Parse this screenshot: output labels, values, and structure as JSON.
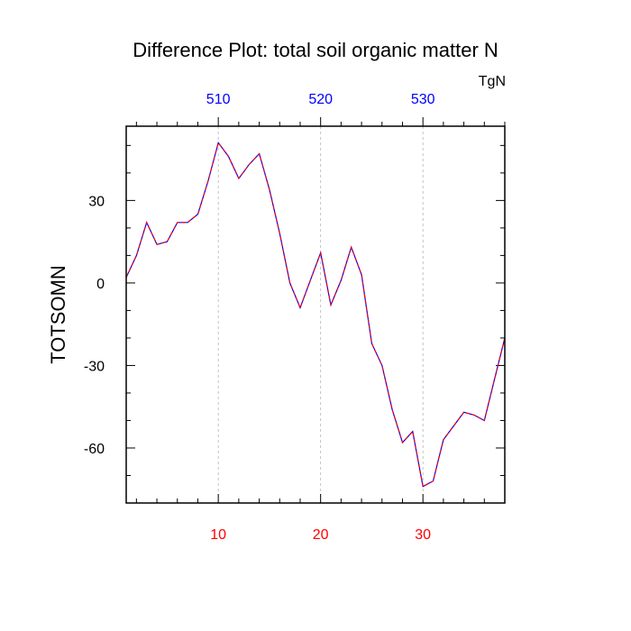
{
  "chart_data": {
    "type": "line",
    "title": "Difference Plot: total soil organic matter N",
    "units_label": "TgN",
    "xlabel": "",
    "ylabel": "TOTSOMN",
    "xlim": [
      1,
      38
    ],
    "ylim": [
      -80,
      57
    ],
    "grid": "vertical dashed at top/bottom tick positions",
    "legend": "none",
    "bottom_axis": {
      "ticks": [
        10,
        20,
        30
      ],
      "tick_labels": [
        "10",
        "20",
        "30"
      ],
      "label_color": "#ff0000"
    },
    "top_axis": {
      "ticks": [
        10,
        20,
        30
      ],
      "tick_labels": [
        "510",
        "520",
        "530"
      ],
      "label_color": "#0000ff"
    },
    "left_axis": {
      "ticks": [
        30,
        0,
        -30,
        -60
      ],
      "tick_labels": [
        "30",
        "0",
        "-30",
        "-60"
      ]
    },
    "series": [
      {
        "line_color": "#800080",
        "line_style": "dashed",
        "x": [
          1,
          2,
          3,
          4,
          5,
          6,
          7,
          8,
          9,
          10,
          11,
          12,
          13,
          14,
          15,
          16,
          17,
          18,
          19,
          20,
          21,
          22,
          23,
          24,
          25,
          26,
          27,
          28,
          29,
          30,
          31,
          32,
          33,
          34,
          35,
          36,
          37,
          38
        ],
        "values": [
          2,
          10,
          22,
          14,
          15,
          22,
          22,
          25,
          37,
          51,
          46,
          38,
          43,
          47,
          34,
          18,
          0,
          -9,
          1,
          11,
          -8,
          1,
          13,
          3,
          -22,
          -30,
          -46,
          -58,
          -54,
          -74,
          -72,
          -57,
          -52,
          -47,
          -48,
          -50,
          -35,
          -20
        ]
      }
    ]
  }
}
